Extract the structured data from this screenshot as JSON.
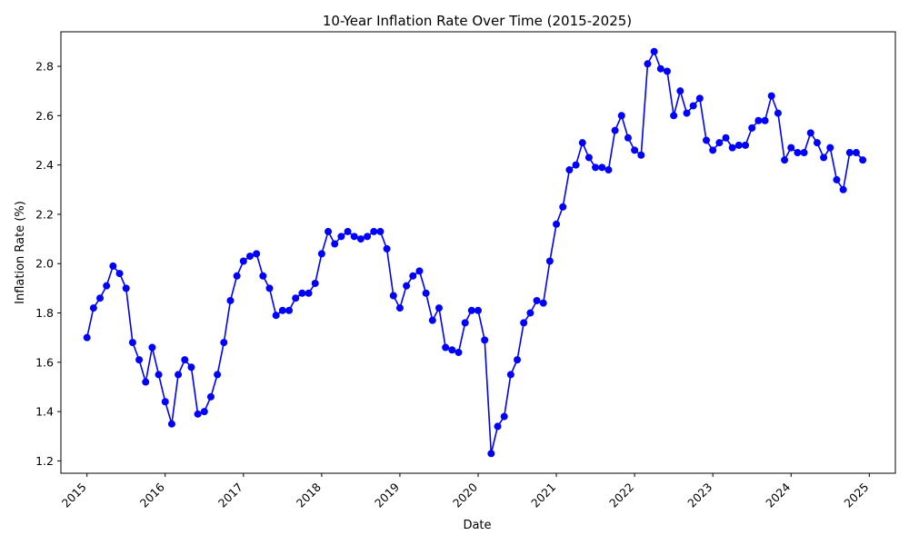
{
  "chart_data": {
    "type": "line",
    "title": "10-Year Inflation Rate Over Time (2015-2025)",
    "xlabel": "Date",
    "ylabel": "Inflation Rate (%)",
    "x_ticks": [
      "2015",
      "2016",
      "2017",
      "2018",
      "2019",
      "2020",
      "2021",
      "2022",
      "2023",
      "2024",
      "2025"
    ],
    "y_ticks": [
      "1.2",
      "1.4",
      "1.6",
      "1.8",
      "2.0",
      "2.2",
      "2.4",
      "2.6",
      "2.8"
    ],
    "xlim": [
      "2014-09",
      "2025-05"
    ],
    "ylim": [
      1.15,
      2.94
    ],
    "grid": false,
    "line_color": "#0000ff",
    "marker": "circle",
    "series": [
      {
        "x": [
          "2015-01",
          "2015-02",
          "2015-03",
          "2015-04",
          "2015-05",
          "2015-06",
          "2015-07",
          "2015-08",
          "2015-09",
          "2015-10",
          "2015-11",
          "2015-12",
          "2016-01",
          "2016-02",
          "2016-03",
          "2016-04",
          "2016-05",
          "2016-06",
          "2016-07",
          "2016-08",
          "2016-09",
          "2016-10",
          "2016-11",
          "2016-12",
          "2017-01",
          "2017-02",
          "2017-03",
          "2017-04",
          "2017-05",
          "2017-06",
          "2017-07",
          "2017-08",
          "2017-09",
          "2017-10",
          "2017-11",
          "2017-12",
          "2018-01",
          "2018-02",
          "2018-03",
          "2018-04",
          "2018-05",
          "2018-06",
          "2018-07",
          "2018-08",
          "2018-09",
          "2018-10",
          "2018-11",
          "2018-12",
          "2019-01",
          "2019-02",
          "2019-03",
          "2019-04",
          "2019-05",
          "2019-06",
          "2019-07",
          "2019-08",
          "2019-09",
          "2019-10",
          "2019-11",
          "2019-12",
          "2020-01",
          "2020-02",
          "2020-03",
          "2020-04",
          "2020-05",
          "2020-06",
          "2020-07",
          "2020-08",
          "2020-09",
          "2020-10",
          "2020-11",
          "2020-12",
          "2021-01",
          "2021-02",
          "2021-03",
          "2021-04",
          "2021-05",
          "2021-06",
          "2021-07",
          "2021-08",
          "2021-09",
          "2021-10",
          "2021-11",
          "2021-12",
          "2022-01",
          "2022-02",
          "2022-03",
          "2022-04",
          "2022-05",
          "2022-06",
          "2022-07",
          "2022-08",
          "2022-09",
          "2022-10",
          "2022-11",
          "2022-12",
          "2023-01",
          "2023-02",
          "2023-03",
          "2023-04",
          "2023-05",
          "2023-06",
          "2023-07",
          "2023-08",
          "2023-09",
          "2023-10",
          "2023-11",
          "2023-12",
          "2024-01",
          "2024-02",
          "2024-03",
          "2024-04",
          "2024-05",
          "2024-06",
          "2024-07",
          "2024-08",
          "2024-09",
          "2024-10",
          "2024-11",
          "2024-12"
        ],
        "values": [
          1.7,
          1.82,
          1.86,
          1.91,
          1.99,
          1.96,
          1.9,
          1.68,
          1.61,
          1.52,
          1.66,
          1.55,
          1.44,
          1.35,
          1.55,
          1.61,
          1.58,
          1.39,
          1.4,
          1.46,
          1.55,
          1.68,
          1.85,
          1.95,
          2.01,
          2.03,
          2.04,
          1.95,
          1.9,
          1.79,
          1.81,
          1.81,
          1.86,
          1.88,
          1.88,
          1.92,
          2.04,
          2.13,
          2.08,
          2.11,
          2.13,
          2.11,
          2.1,
          2.11,
          2.13,
          2.13,
          2.06,
          1.87,
          1.82,
          1.91,
          1.95,
          1.97,
          1.88,
          1.77,
          1.82,
          1.66,
          1.65,
          1.64,
          1.76,
          1.81,
          1.81,
          1.69,
          1.23,
          1.34,
          1.38,
          1.55,
          1.61,
          1.76,
          1.8,
          1.85,
          1.84,
          2.01,
          2.16,
          2.23,
          2.38,
          2.4,
          2.49,
          2.43,
          2.39,
          2.39,
          2.38,
          2.54,
          2.6,
          2.51,
          2.46,
          2.44,
          2.81,
          2.86,
          2.79,
          2.78,
          2.6,
          2.7,
          2.61,
          2.64,
          2.67,
          2.5,
          2.46,
          2.49,
          2.51,
          2.47,
          2.48,
          2.48,
          2.55,
          2.58,
          2.58,
          2.68,
          2.61,
          2.42,
          2.47,
          2.45,
          2.45,
          2.53,
          2.49,
          2.43,
          2.47,
          2.34,
          2.3,
          2.45,
          2.45,
          2.42
        ]
      }
    ]
  }
}
